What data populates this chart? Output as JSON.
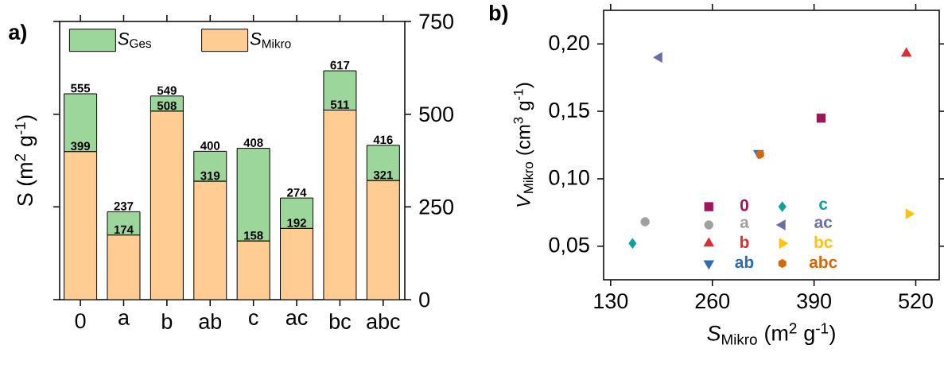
{
  "chart_data": [
    {
      "type": "bar",
      "title": "**a)**",
      "ylabel": "S (m$^{2}$ g$^{-1}$)",
      "categories": [
        "0",
        "a",
        "b",
        "ab",
        "c",
        "ac",
        "bc",
        "abc"
      ],
      "stacked": true,
      "series": [
        {
          "name": "*S*$_{Mikro}$",
          "color": "#ffcc94",
          "values": [
            399,
            174,
            508,
            319,
            158,
            192,
            511,
            321
          ],
          "value_labels": [
            "399",
            "174",
            "508",
            "319",
            "158",
            "192",
            "511",
            "321"
          ]
        },
        {
          "name": "*S*$_{Ges}$",
          "color": "#9dd69b",
          "values": [
            156,
            63,
            41,
            81,
            250,
            82,
            106,
            95
          ]
        }
      ],
      "totals": [
        "555",
        "237",
        "549",
        "400",
        "408",
        "274",
        "617",
        "416"
      ],
      "ylim": [
        0,
        750
      ],
      "yticks": [
        0,
        250,
        500,
        750
      ],
      "legend": "top left"
    },
    {
      "type": "scatter",
      "title": "**b)**",
      "xlabel": "*S*$_{Mikro}$ (m$^{2}$ g$^{-1}$)",
      "ylabel": "*V*$_{Mikro}$ (cm$^{3}$ g$^{-1}$)",
      "series": [
        {
          "name": "0",
          "color": "#a0155a",
          "marker": "square",
          "x": [
            399
          ],
          "values": [
            0.145
          ]
        },
        {
          "name": "a",
          "color": "#a0a0a0",
          "marker": "circle",
          "x": [
            174
          ],
          "values": [
            0.068
          ]
        },
        {
          "name": "b",
          "color": "#d62f36",
          "marker": "triangle",
          "x": [
            508
          ],
          "values": [
            0.193
          ]
        },
        {
          "name": "ab",
          "color": "#2e6db4",
          "marker": "triangle_down",
          "x": [
            319
          ],
          "values": [
            0.119
          ]
        },
        {
          "name": "c",
          "color": "#0aa39a",
          "marker": "diamond",
          "x": [
            158
          ],
          "values": [
            0.052
          ]
        },
        {
          "name": "ac",
          "color": "#6b6ba8",
          "marker": "triangle_left",
          "x": [
            192
          ],
          "values": [
            0.19
          ]
        },
        {
          "name": "bc",
          "color": "#ffc20e",
          "marker": "triangle_right",
          "x": [
            511
          ],
          "values": [
            0.074
          ]
        },
        {
          "name": "abc",
          "color": "#d4690a",
          "x": [
            321
          ],
          "values": [
            0.118
          ]
        }
      ],
      "xlim": [
        121,
        550
      ],
      "xticks": [
        130,
        260,
        390,
        520
      ],
      "ylim": [
        0.025,
        0.225
      ],
      "yticks": [
        {
          "value": 0.05,
          "label": "0,05"
        },
        {
          "value": 0.1,
          "label": "0,10"
        },
        {
          "value": 0.15,
          "label": "0,15"
        },
        {
          "value": 0.2,
          "label": "0,20"
        }
      ],
      "legend": "bottom"
    }
  ]
}
